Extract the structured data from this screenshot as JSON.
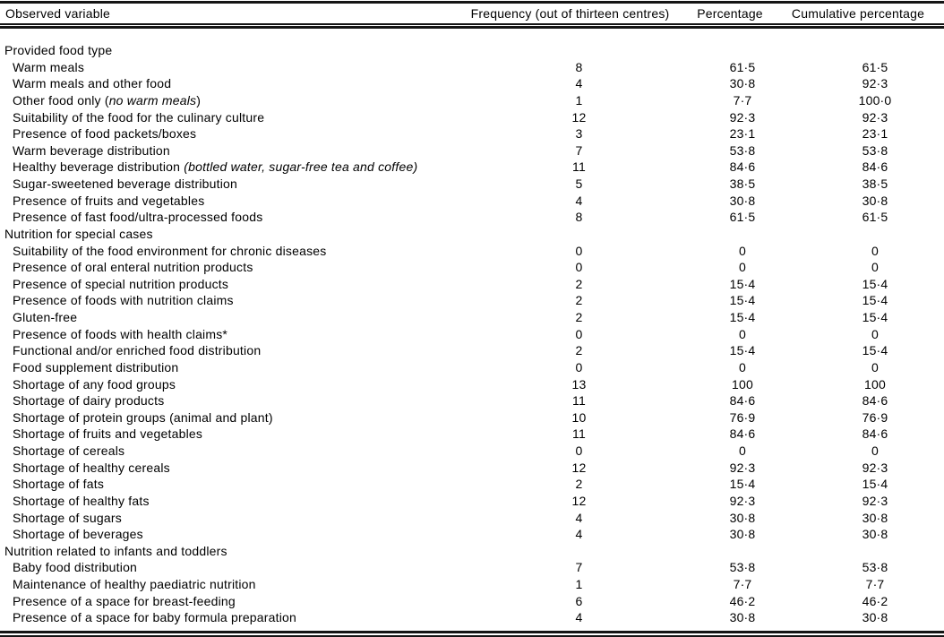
{
  "table": {
    "columns": [
      "Observed variable",
      "Frequency (out of thirteen centres)",
      "Percentage",
      "Cumulative percentage"
    ],
    "rows": [
      {
        "type": "section",
        "label": "Provided food type",
        "freq": "",
        "pct": "",
        "cum": ""
      },
      {
        "type": "item",
        "label": "Warm meals",
        "freq": "8",
        "pct": "61·5",
        "cum": "61·5"
      },
      {
        "type": "item",
        "label": "Warm meals and other food",
        "freq": "4",
        "pct": "30·8",
        "cum": "92·3"
      },
      {
        "type": "item",
        "label": "Other food only (",
        "italic": "no warm meals",
        "post": ")",
        "freq": "1",
        "pct": "7·7",
        "cum": "100·0"
      },
      {
        "type": "item",
        "label": "Suitability of the food for the culinary culture",
        "freq": "12",
        "pct": "92·3",
        "cum": "92·3"
      },
      {
        "type": "item",
        "label": "Presence of food packets/boxes",
        "freq": "3",
        "pct": "23·1",
        "cum": "23·1"
      },
      {
        "type": "item",
        "label": "Warm beverage distribution",
        "freq": "7",
        "pct": "53·8",
        "cum": "53·8"
      },
      {
        "type": "item",
        "label": "Healthy beverage distribution ",
        "italic": "(bottled water, sugar-free tea and coffee)",
        "post": "",
        "freq": "11",
        "pct": "84·6",
        "cum": "84·6"
      },
      {
        "type": "item",
        "label": "Sugar-sweetened beverage distribution",
        "freq": "5",
        "pct": "38·5",
        "cum": "38·5"
      },
      {
        "type": "item",
        "label": "Presence of fruits and vegetables",
        "freq": "4",
        "pct": "30·8",
        "cum": "30·8"
      },
      {
        "type": "item",
        "label": "Presence of fast food/ultra-processed foods",
        "freq": "8",
        "pct": "61·5",
        "cum": "61·5"
      },
      {
        "type": "section",
        "label": "Nutrition for special cases",
        "freq": "",
        "pct": "",
        "cum": ""
      },
      {
        "type": "item",
        "label": "Suitability of the food environment for chronic diseases",
        "freq": "0",
        "pct": "0",
        "cum": "0"
      },
      {
        "type": "item",
        "label": "Presence of oral enteral nutrition products",
        "freq": "0",
        "pct": "0",
        "cum": "0"
      },
      {
        "type": "item",
        "label": "Presence of special nutrition products",
        "freq": "2",
        "pct": "15·4",
        "cum": "15·4"
      },
      {
        "type": "item",
        "label": "Presence of foods with nutrition claims",
        "freq": "2",
        "pct": "15·4",
        "cum": "15·4"
      },
      {
        "type": "item",
        "label": "Gluten-free",
        "freq": "2",
        "pct": "15·4",
        "cum": "15·4"
      },
      {
        "type": "item",
        "label": "Presence of foods with health claims*",
        "freq": "0",
        "pct": "0",
        "cum": "0"
      },
      {
        "type": "item",
        "label": "Functional and/or enriched food distribution",
        "freq": "2",
        "pct": "15·4",
        "cum": "15·4"
      },
      {
        "type": "item",
        "label": "Food supplement distribution",
        "freq": "0",
        "pct": "0",
        "cum": "0"
      },
      {
        "type": "item",
        "label": "Shortage of any food groups",
        "freq": "13",
        "pct": "100",
        "cum": "100"
      },
      {
        "type": "item",
        "label": "Shortage of dairy products",
        "freq": "11",
        "pct": "84·6",
        "cum": "84·6"
      },
      {
        "type": "item",
        "label": "Shortage of protein groups (animal and plant)",
        "freq": "10",
        "pct": "76·9",
        "cum": "76·9"
      },
      {
        "type": "item",
        "label": "Shortage of fruits and vegetables",
        "freq": "11",
        "pct": "84·6",
        "cum": "84·6"
      },
      {
        "type": "item",
        "label": "Shortage of cereals",
        "freq": "0",
        "pct": "0",
        "cum": "0"
      },
      {
        "type": "item",
        "label": "Shortage of healthy cereals",
        "freq": "12",
        "pct": "92·3",
        "cum": "92·3"
      },
      {
        "type": "item",
        "label": "Shortage of fats",
        "freq": "2",
        "pct": "15·4",
        "cum": "15·4"
      },
      {
        "type": "item",
        "label": "Shortage of healthy fats",
        "freq": "12",
        "pct": "92·3",
        "cum": "92·3"
      },
      {
        "type": "item",
        "label": "Shortage of sugars",
        "freq": "4",
        "pct": "30·8",
        "cum": "30·8"
      },
      {
        "type": "item",
        "label": "Shortage of beverages",
        "freq": "4",
        "pct": "30·8",
        "cum": "30·8"
      },
      {
        "type": "section",
        "label": "Nutrition related to infants and toddlers",
        "freq": "",
        "pct": "",
        "cum": ""
      },
      {
        "type": "item",
        "label": "Baby food distribution",
        "freq": "7",
        "pct": "53·8",
        "cum": "53·8"
      },
      {
        "type": "item",
        "label": "Maintenance of healthy paediatric nutrition",
        "freq": "1",
        "pct": "7·7",
        "cum": "7·7"
      },
      {
        "type": "item",
        "label": "Presence of a space for breast-feeding",
        "freq": "6",
        "pct": "46·2",
        "cum": "46·2"
      },
      {
        "type": "item",
        "label": "Presence of a space for baby formula preparation",
        "freq": "4",
        "pct": "30·8",
        "cum": "30·8"
      }
    ]
  }
}
